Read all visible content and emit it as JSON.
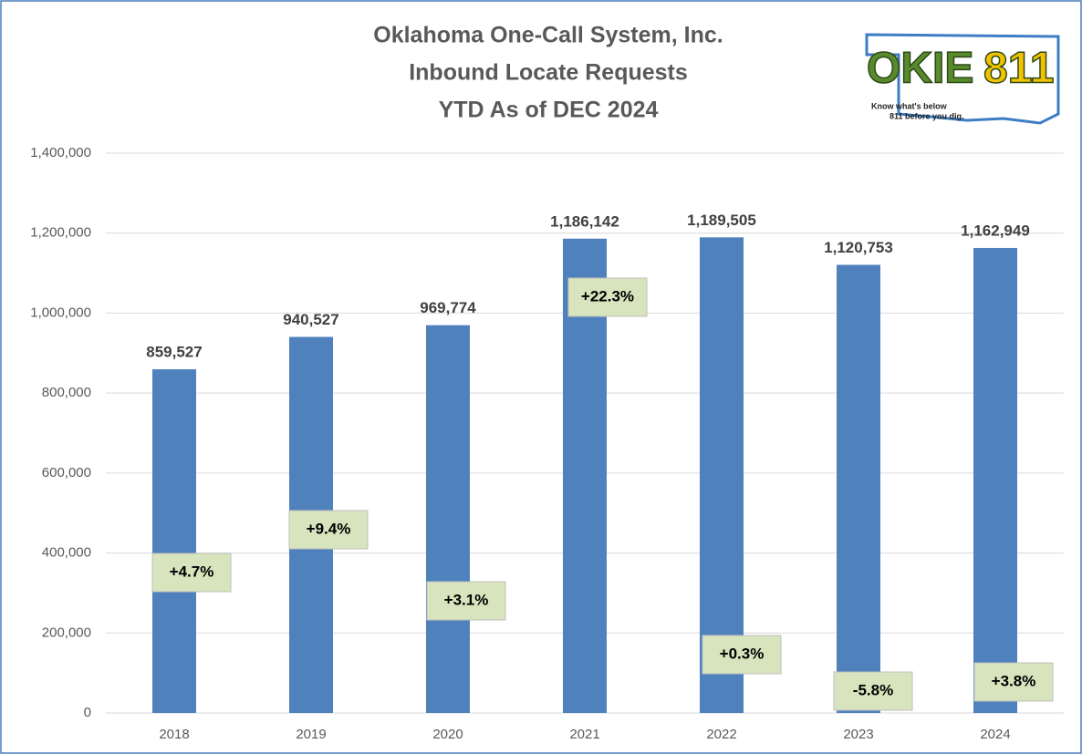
{
  "chart_data": {
    "type": "bar",
    "title": [
      "Oklahoma One-Call System, Inc.",
      "Inbound Locate Requests",
      "YTD As of DEC 2024"
    ],
    "categories": [
      "2018",
      "2019",
      "2020",
      "2021",
      "2022",
      "2023",
      "2024"
    ],
    "values": [
      859527,
      940527,
      969774,
      1186142,
      1189505,
      1120753,
      1162949
    ],
    "value_labels": [
      "859,527",
      "940,527",
      "969,774",
      "1,186,142",
      "1,189,505",
      "1,120,753",
      "1,162,949"
    ],
    "change_labels": [
      "+4.7%",
      "+9.4%",
      "+3.1%",
      "+22.3%",
      "+0.3%",
      "-5.8%",
      "+3.8%"
    ],
    "color": "#4f81bd",
    "ylim": [
      0,
      1400000
    ],
    "yticks": [
      0,
      {
        "value": 200000,
        "label": "200,000"
      },
      {
        "value": 400000,
        "label": "400,000"
      },
      {
        "value": 600000,
        "label": "600,000"
      },
      {
        "value": 800000,
        "label": "800,000"
      },
      {
        "value": 1000000,
        "label": "1,000,000"
      },
      {
        "value": 1200000,
        "label": "1,200,000"
      },
      {
        "value": 1400000,
        "label": "1,400,000"
      }
    ],
    "grid": true
  },
  "logo": {
    "name": "OKIE",
    "number": "811",
    "tagline": "Know what's below",
    "tagline2": "811 before you dig."
  }
}
